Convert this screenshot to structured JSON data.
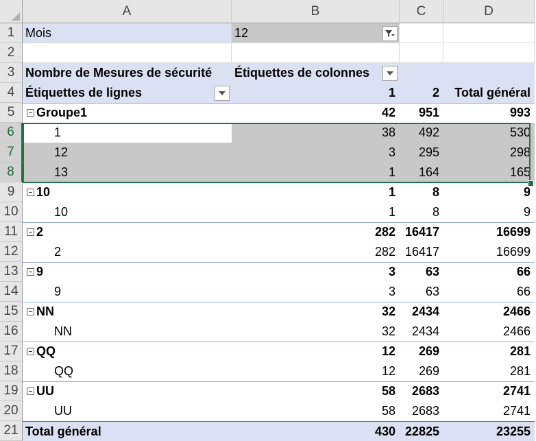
{
  "columns": [
    "A",
    "B",
    "C",
    "D"
  ],
  "rows": [
    "1",
    "2",
    "3",
    "4",
    "5",
    "6",
    "7",
    "8",
    "9",
    "10",
    "11",
    "12",
    "13",
    "14",
    "15",
    "16",
    "17",
    "18",
    "19",
    "20",
    "21"
  ],
  "filter": {
    "label": "Mois",
    "value": "12"
  },
  "pivot_header": {
    "values_label": "Nombre de Mesures de sécurité",
    "col_labels": "Étiquettes de colonnes",
    "row_labels": "Étiquettes de lignes",
    "col1": "1",
    "col2": "2",
    "total": "Total général"
  },
  "groups": [
    {
      "label": "Groupe1",
      "c1": "42",
      "c2": "951",
      "t": "993",
      "items": [
        {
          "label": "1",
          "c1": "38",
          "c2": "492",
          "t": "530"
        },
        {
          "label": "12",
          "c1": "3",
          "c2": "295",
          "t": "298"
        },
        {
          "label": "13",
          "c1": "1",
          "c2": "164",
          "t": "165"
        }
      ]
    },
    {
      "label": "10",
      "c1": "1",
      "c2": "8",
      "t": "9",
      "items": [
        {
          "label": "10",
          "c1": "1",
          "c2": "8",
          "t": "9"
        }
      ]
    },
    {
      "label": "2",
      "c1": "282",
      "c2": "16417",
      "t": "16699",
      "items": [
        {
          "label": "2",
          "c1": "282",
          "c2": "16417",
          "t": "16699"
        }
      ]
    },
    {
      "label": "9",
      "c1": "3",
      "c2": "63",
      "t": "66",
      "items": [
        {
          "label": "9",
          "c1": "3",
          "c2": "63",
          "t": "66"
        }
      ]
    },
    {
      "label": "NN",
      "c1": "32",
      "c2": "2434",
      "t": "2466",
      "items": [
        {
          "label": "NN",
          "c1": "32",
          "c2": "2434",
          "t": "2466"
        }
      ]
    },
    {
      "label": "QQ",
      "c1": "12",
      "c2": "269",
      "t": "281",
      "items": [
        {
          "label": "QQ",
          "c1": "12",
          "c2": "269",
          "t": "281"
        }
      ]
    },
    {
      "label": "UU",
      "c1": "58",
      "c2": "2683",
      "t": "2741",
      "items": [
        {
          "label": "UU",
          "c1": "58",
          "c2": "2683",
          "t": "2741"
        }
      ]
    }
  ],
  "grand_total": {
    "label": "Total général",
    "c1": "430",
    "c2": "22825",
    "t": "23255"
  },
  "colors": {
    "pivot_header": "#d9e1f2",
    "selection": "#217346",
    "selected_fill": "#c8c8c8"
  },
  "icons": {
    "filter_dropdown": "filter-funnel-icon",
    "dropdown": "chevron-down-icon",
    "collapse": "minus-box-icon"
  }
}
